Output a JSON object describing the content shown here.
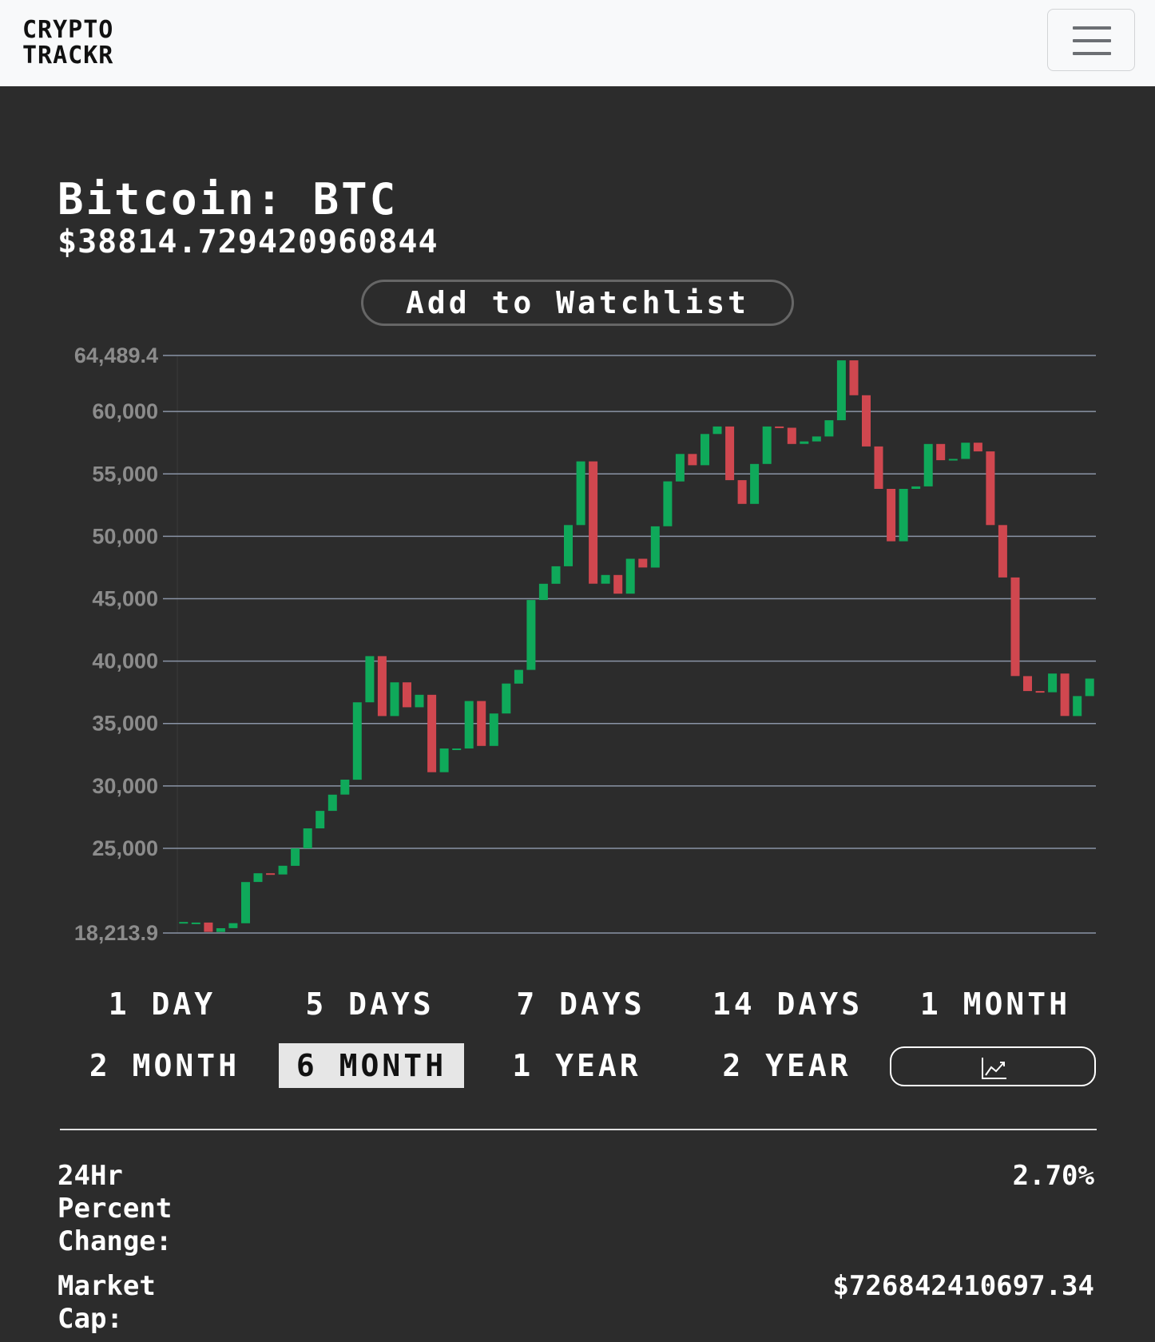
{
  "navbar": {
    "brand_line1": "CRYPTO",
    "brand_line2": "TRACKR",
    "menu_icon": "hamburger-menu-icon"
  },
  "coin": {
    "title": "Bitcoin: BTC",
    "price": "$38814.729420960844"
  },
  "watchlist_label": "Add to Watchlist",
  "ranges": [
    {
      "label": "1 DAY",
      "active": false
    },
    {
      "label": "5 DAYS",
      "active": false
    },
    {
      "label": "7 DAYS",
      "active": false
    },
    {
      "label": "14 DAYS",
      "active": false
    },
    {
      "label": "1 MONTH",
      "active": false
    },
    {
      "label": "2 MONTH",
      "active": false
    },
    {
      "label": "6 MONTH",
      "active": true
    },
    {
      "label": "1 YEAR",
      "active": false
    },
    {
      "label": "2 YEAR",
      "active": false
    }
  ],
  "chart_type_icon": "line-chart-icon",
  "stats": {
    "change_label_1": "24Hr",
    "change_label_2": "Percent",
    "change_label_3": "Change:",
    "change_value": "2.70%",
    "cap_label_1": "Market",
    "cap_label_2": "Cap:",
    "cap_value": "$726842410697.34"
  },
  "colors": {
    "background": "#2c2c2c",
    "navbar": "#f8f9fa",
    "up": "#0fa95a",
    "down": "#d0474f",
    "grid": "#8a94a6",
    "tick_label": "#8c8c8c"
  },
  "chart_data": {
    "type": "candlestick",
    "y_ticks": [
      "64,489.4",
      "60,000",
      "55,000",
      "50,000",
      "45,000",
      "40,000",
      "35,000",
      "30,000",
      "25,000",
      "18,213.9"
    ],
    "ylim": [
      18213.9,
      64489.4
    ],
    "grid": true,
    "candles": [
      [
        19100,
        19100
      ],
      [
        19000,
        19050
      ],
      [
        19050,
        18300
      ],
      [
        18300,
        18600
      ],
      [
        18600,
        19000
      ],
      [
        19000,
        22300
      ],
      [
        22300,
        23000
      ],
      [
        23000,
        22900
      ],
      [
        22900,
        23600
      ],
      [
        23600,
        25000
      ],
      [
        25000,
        26600
      ],
      [
        26600,
        28000
      ],
      [
        28000,
        29300
      ],
      [
        29300,
        30500
      ],
      [
        30500,
        36700
      ],
      [
        36700,
        40400
      ],
      [
        40400,
        35600
      ],
      [
        35600,
        38300
      ],
      [
        38300,
        36300
      ],
      [
        36300,
        37300
      ],
      [
        37300,
        31100
      ],
      [
        31100,
        33000
      ],
      [
        33000,
        33000
      ],
      [
        33000,
        36800
      ],
      [
        36800,
        33200
      ],
      [
        33200,
        35800
      ],
      [
        35800,
        38200
      ],
      [
        38200,
        39300
      ],
      [
        39300,
        44900
      ],
      [
        44900,
        46200
      ],
      [
        46200,
        47600
      ],
      [
        47600,
        50900
      ],
      [
        50900,
        56000
      ],
      [
        56000,
        46200
      ],
      [
        46200,
        46900
      ],
      [
        46900,
        45400
      ],
      [
        45400,
        48200
      ],
      [
        48200,
        47500
      ],
      [
        47500,
        50800
      ],
      [
        50800,
        54400
      ],
      [
        54400,
        56600
      ],
      [
        56600,
        55700
      ],
      [
        55700,
        58200
      ],
      [
        58200,
        58800
      ],
      [
        58800,
        54500
      ],
      [
        54500,
        52600
      ],
      [
        52600,
        55800
      ],
      [
        55800,
        58800
      ],
      [
        58800,
        58700
      ],
      [
        58700,
        57400
      ],
      [
        57400,
        57600
      ],
      [
        57600,
        58000
      ],
      [
        58000,
        59300
      ],
      [
        59300,
        64100
      ],
      [
        64100,
        61300
      ],
      [
        61300,
        57200
      ],
      [
        57200,
        53800
      ],
      [
        53800,
        49600
      ],
      [
        49600,
        53800
      ],
      [
        53800,
        54000
      ],
      [
        54000,
        57400
      ],
      [
        57400,
        56100
      ],
      [
        56100,
        56200
      ],
      [
        56200,
        57500
      ],
      [
        57500,
        56800
      ],
      [
        56800,
        50900
      ],
      [
        50900,
        46700
      ],
      [
        46700,
        38800
      ],
      [
        38800,
        37600
      ],
      [
        37600,
        37500
      ],
      [
        37500,
        39000
      ],
      [
        39000,
        35600
      ],
      [
        35600,
        37200
      ],
      [
        37200,
        38600
      ]
    ]
  }
}
